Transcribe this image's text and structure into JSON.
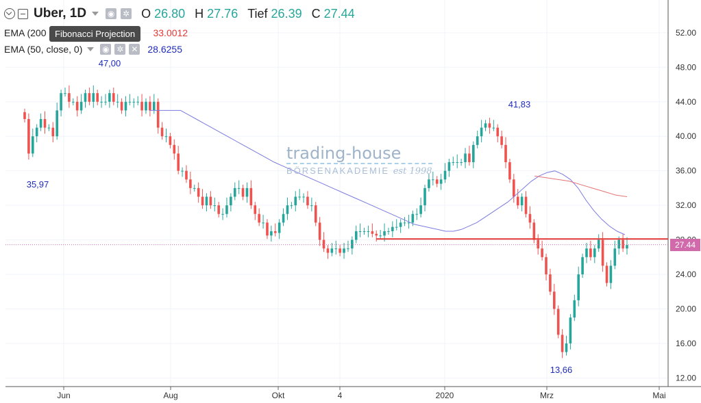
{
  "header": {
    "symbol": "Uber, 1D",
    "open_label": "O",
    "open_value": "26.80",
    "high_label": "H",
    "high_value": "27.76",
    "low_label": "Tief",
    "low_value": "26.39",
    "close_label": "C",
    "close_value": "27.44"
  },
  "indicators": {
    "ema200_label": "EMA (200",
    "ema200_value": "33.0012",
    "ema50_label": "EMA (50, close, 0)",
    "ema50_value": "28.6255"
  },
  "tooltip": "Fibonacci Projection",
  "watermark": {
    "line1": "trading-house",
    "line2": "BÖRSENAKADEMIE",
    "line3": "est 1998"
  },
  "price_tag": "27.44",
  "colors": {
    "up": "#26a69a",
    "down": "#ef5350",
    "ema50": "#7b7be0",
    "ema200": "#e57373",
    "support": "#e53935",
    "axis_text": "#333333",
    "grid": "#f0f3fa",
    "price_tag": "#d16aaa"
  },
  "chart_data": {
    "type": "candlestick",
    "y_range": [
      11,
      55
    ],
    "y_ticks": [
      "52.00",
      "48.00",
      "44.00",
      "40.00",
      "36.00",
      "32.00",
      "28.00",
      "24.00",
      "20.00",
      "16.00",
      "12.00"
    ],
    "x_ticks": [
      "Jun",
      "Aug",
      "Okt",
      "4",
      "2020",
      "Mrz",
      "Mai"
    ],
    "annotations": [
      "47,00",
      "35,97",
      "41,83",
      "13,66"
    ],
    "support_level": 28.1,
    "last_price": 27.44,
    "closes": [
      42,
      38,
      40,
      41,
      42,
      41,
      41,
      40,
      43,
      45,
      45,
      44,
      44,
      43,
      44,
      45,
      44,
      45,
      44,
      44,
      44,
      45,
      44,
      44,
      43,
      44,
      44,
      44,
      44,
      43,
      44,
      43,
      44,
      41,
      40,
      40,
      39,
      38,
      36,
      36,
      35,
      34,
      34,
      33,
      32,
      33,
      32,
      32,
      31,
      31,
      32,
      33,
      34,
      34,
      33,
      34,
      32,
      31,
      30,
      30,
      28.5,
      29,
      28.8,
      30,
      31,
      32,
      32,
      33,
      33,
      33,
      32,
      32,
      30,
      28,
      27,
      26.5,
      27,
      27,
      26.5,
      27,
      27,
      28,
      29,
      29,
      29,
      29,
      28.7,
      28.5,
      28.5,
      29,
      29,
      29.5,
      29.5,
      30,
      30,
      30,
      31,
      31,
      32,
      34,
      35,
      35,
      34.5,
      35,
      36,
      37,
      37,
      37,
      37,
      38,
      37,
      39,
      40,
      41,
      41.5,
      41,
      41,
      40,
      39,
      37,
      35,
      33,
      32,
      33,
      31,
      30,
      28,
      27,
      26,
      24,
      22,
      20,
      17,
      15,
      16,
      19,
      21,
      24,
      26,
      27,
      26,
      27,
      28,
      25,
      23,
      25,
      27,
      28,
      27,
      27.4
    ],
    "ema50": [
      43,
      43,
      43,
      43,
      43,
      42.5,
      42,
      41.5,
      41,
      40.5,
      40,
      39.5,
      39,
      38.5,
      38,
      37.5,
      37,
      36.6,
      36.2,
      35.8,
      35.4,
      35,
      34.6,
      34.2,
      33.8,
      33.4,
      33,
      32.6,
      32.2,
      31.8,
      31.4,
      31,
      30.6,
      30.2,
      29.8,
      29.6,
      29.4,
      29.2,
      29,
      29,
      29.2,
      29.6,
      30,
      30.6,
      31.2,
      31.8,
      32.4,
      33.2,
      34,
      34.8,
      35.4,
      35.8,
      36,
      35.6,
      35,
      34,
      32.6,
      31.4,
      30.4,
      29.6,
      29,
      28.6
    ],
    "ema200": [
      35.4,
      35.2,
      35,
      34.8,
      34.4,
      34,
      33.6,
      33.2,
      33
    ]
  }
}
